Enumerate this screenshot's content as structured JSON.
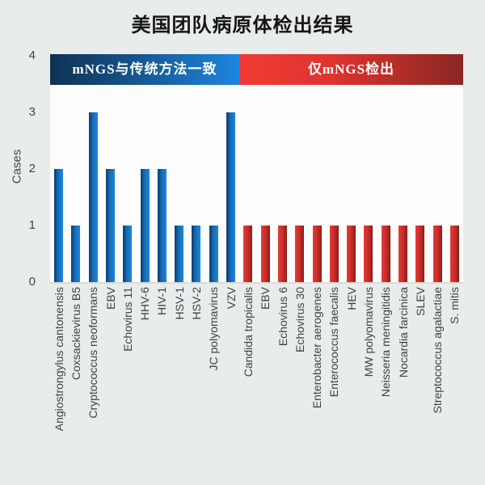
{
  "title": "美国团队病原体检出结果",
  "colors": {
    "background": "#e8edeb",
    "plot_background": "#fdfdfd",
    "blue_band_gradient": [
      "#0f3153",
      "#1e86de"
    ],
    "red_band_gradient": [
      "#f03b35",
      "#8b2724"
    ],
    "blue_bar_gradient": [
      "#0c3c6b",
      "#1e87db"
    ],
    "red_bar_gradient": [
      "#e33a36",
      "#8a201d"
    ],
    "axis_text": "#3e4549",
    "title_text": "#151515"
  },
  "chart_data": {
    "type": "bar",
    "title": "美国团队病原体检出结果",
    "xlabel": "",
    "ylabel": "Cases",
    "ylim": [
      0,
      4
    ],
    "yticks": [
      0,
      1,
      2,
      3,
      4
    ],
    "grid": false,
    "legend_position": "top-bands",
    "groups": [
      {
        "name": "mNGS与传统方法一致",
        "color": "blue",
        "categories": [
          "Angiostrongylus cantonensis",
          "Coxsackievirus B5",
          "Cryptococcus neoformans",
          "EBV",
          "Echovirus 11",
          "HHV-6",
          "HIV-1",
          "HSV-1",
          "HSV-2",
          "JC polyomavirus",
          "VZV"
        ],
        "values": [
          2,
          1,
          3,
          2,
          1,
          2,
          2,
          1,
          1,
          1,
          3
        ]
      },
      {
        "name": "仅mNGS检出",
        "color": "red",
        "categories": [
          "Candida tropicalis",
          "EBV",
          "Echovirus 6",
          "Echovirus 30",
          "Enterobacter aerogenes",
          "Enterococcus faecalis",
          "HEV",
          "MW polyomavirus",
          "Neisseria meningitidis",
          "Nocardia farcinica",
          "SLEV",
          "Streptococcus agalactiae",
          "S. mitis"
        ],
        "values": [
          1,
          1,
          1,
          1,
          1,
          1,
          1,
          1,
          1,
          1,
          1,
          1,
          1
        ]
      }
    ]
  }
}
